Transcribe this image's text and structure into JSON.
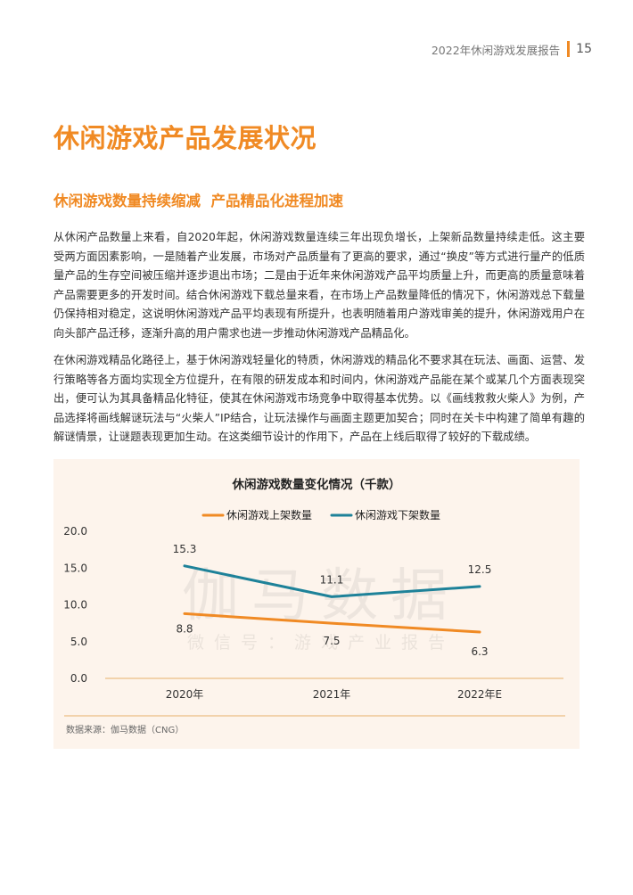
{
  "header": {
    "report_title": "2022年休闲游戏发展报告",
    "page_number": "15"
  },
  "section_title": "休闲游戏产品发展状况",
  "subsection_title": "休闲游戏数量持续缩减  产品精品化进程加速",
  "paragraphs": [
    "从休闲产品数量上来看，自2020年起，休闲游戏数量连续三年出现负增长，上架新品数量持续走低。这主要受两方面因素影响，一是随着产业发展，市场对产品质量有了更高的要求，通过“换皮”等方式进行量产的低质量产品的生存空间被压缩并逐步退出市场；二是由于近年来休闲游戏产品平均质量上升，而更高的质量意味着产品需要更多的开发时间。结合休闲游戏下载总量来看，在市场上产品数量降低的情况下，休闲游戏总下载量仍保持相对稳定，这说明休闲游戏产品平均表现有所提升，也表明随着用户游戏审美的提升，休闲游戏用户在向头部产品迁移，逐渐升高的用户需求也进一步推动休闲游戏产品精品化。",
    "在休闲游戏精品化路径上，基于休闲游戏轻量化的特质，休闲游戏的精品化不要求其在玩法、画面、运营、发行策略等各方面均实现全方位提升，在有限的研发成本和时间内，休闲游戏产品能在某个或某几个方面表现突出，便可认为其具备精品化特征，使其在休闲游戏市场竞争中取得基本优势。以《画线救救火柴人》为例，产品选择将画线解谜玩法与“火柴人”IP结合，让玩法操作与画面主题更加契合；同时在关卡中构建了简单有趣的解谜情景，让谜题表现更加生动。在这类细节设计的作用下，产品在上线后取得了较好的下载成绩。"
  ],
  "watermark": {
    "main": "伽马数据",
    "sub": "微信号：游戏产业报告"
  },
  "chart_data": {
    "type": "line",
    "title": "休闲游戏数量变化情况（千款）",
    "categories": [
      "2020年",
      "2021年",
      "2022年E"
    ],
    "series": [
      {
        "name": "休闲游戏上架数量",
        "values": [
          8.8,
          7.5,
          6.3
        ],
        "labels": [
          "8.8",
          "7.5",
          "6.3"
        ],
        "color": "#F08A24"
      },
      {
        "name": "休闲游戏下架数量",
        "values": [
          15.3,
          11.1,
          12.5
        ],
        "labels": [
          "15.3",
          "11.1",
          "12.5"
        ],
        "color": "#1E8299"
      }
    ],
    "ylim": [
      0,
      20
    ],
    "yticks": [
      0,
      5,
      10,
      15,
      20
    ],
    "ytick_labels": [
      "0.0",
      "5.0",
      "10.0",
      "15.0",
      "20.0"
    ],
    "grid": false,
    "legend": "top",
    "axis_color": "#E8B06A"
  },
  "source_note": "数据来源：伽马数据（CNG）"
}
